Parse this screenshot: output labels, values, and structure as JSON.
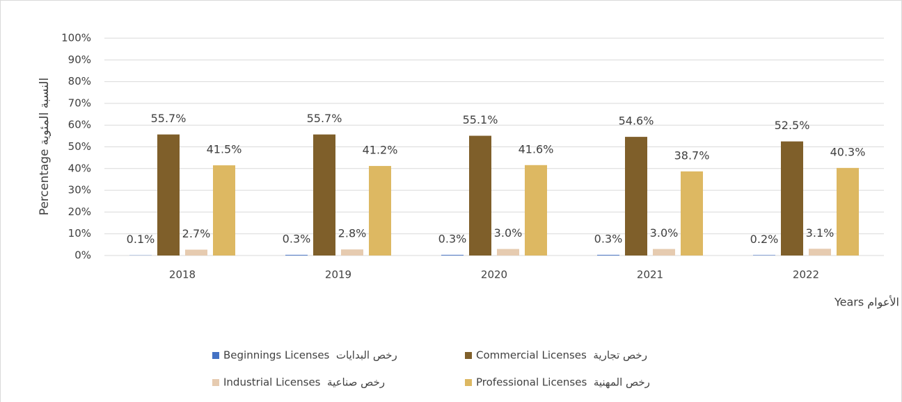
{
  "chart_data": {
    "type": "bar",
    "y_label": "Percentage النسبة المئوية",
    "x_label": "Years الأعوام",
    "categories": [
      "2018",
      "2019",
      "2020",
      "2021",
      "2022"
    ],
    "series": [
      {
        "name": "Beginnings Licenses  رخص البدايات",
        "color": "#4472c4",
        "values": [
          0.1,
          0.3,
          0.3,
          0.3,
          0.2
        ],
        "value_labels": [
          "0.1%",
          "0.3%",
          "0.3%",
          "0.3%",
          "0.2%"
        ]
      },
      {
        "name": "Commercial Licenses  رخص تجارية",
        "color": "#7f5f2a",
        "values": [
          55.7,
          55.7,
          55.1,
          54.6,
          52.5
        ],
        "value_labels": [
          "55.7%",
          "55.7%",
          "55.1%",
          "54.6%",
          "52.5%"
        ]
      },
      {
        "name": "Industrial Licenses  رخص صناعية",
        "color": "#e6cbb0",
        "values": [
          2.7,
          2.8,
          3.0,
          3.0,
          3.1
        ],
        "value_labels": [
          "2.7%",
          "2.8%",
          "3.0%",
          "3.0%",
          "3.1%"
        ]
      },
      {
        "name": "Professional Licenses  رخص المهنية",
        "color": "#ddb862",
        "values": [
          41.5,
          41.2,
          41.6,
          38.7,
          40.3
        ],
        "value_labels": [
          "41.5%",
          "41.2%",
          "41.6%",
          "38.7%",
          "40.3%"
        ]
      }
    ],
    "ylim": [
      0,
      100
    ],
    "yticks": [
      {
        "value": 0,
        "label": "0%"
      },
      {
        "value": 10,
        "label": "10%"
      },
      {
        "value": 20,
        "label": "20%"
      },
      {
        "value": 30,
        "label": "30%"
      },
      {
        "value": 40,
        "label": "40%"
      },
      {
        "value": 50,
        "label": "50%"
      },
      {
        "value": 60,
        "label": "60%"
      },
      {
        "value": 70,
        "label": "70%"
      },
      {
        "value": 80,
        "label": "80%"
      },
      {
        "value": 90,
        "label": "90%"
      },
      {
        "value": 100,
        "label": "100%"
      }
    ],
    "grid": true
  }
}
